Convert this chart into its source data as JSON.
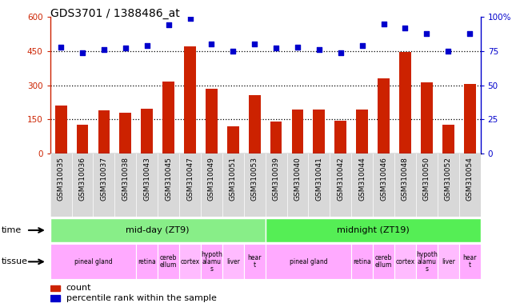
{
  "title": "GDS3701 / 1388486_at",
  "samples": [
    "GSM310035",
    "GSM310036",
    "GSM310037",
    "GSM310038",
    "GSM310043",
    "GSM310045",
    "GSM310047",
    "GSM310049",
    "GSM310051",
    "GSM310053",
    "GSM310039",
    "GSM310040",
    "GSM310041",
    "GSM310042",
    "GSM310044",
    "GSM310046",
    "GSM310048",
    "GSM310050",
    "GSM310052",
    "GSM310054"
  ],
  "counts": [
    210,
    128,
    188,
    180,
    198,
    315,
    470,
    285,
    118,
    255,
    140,
    192,
    193,
    145,
    192,
    330,
    445,
    313,
    128,
    305
  ],
  "percentiles": [
    78,
    74,
    76,
    77,
    79,
    94,
    99,
    80,
    75,
    80,
    77,
    78,
    76,
    74,
    79,
    95,
    92,
    88,
    75,
    88
  ],
  "left_ylim": [
    0,
    600
  ],
  "right_ylim": [
    0,
    100
  ],
  "left_yticks": [
    0,
    150,
    300,
    450,
    600
  ],
  "right_yticks": [
    0,
    25,
    50,
    75,
    100
  ],
  "bar_color": "#cc2200",
  "dot_color": "#0000cc",
  "time_groups": [
    {
      "label": "mid-day (ZT9)",
      "start": 0,
      "end": 10,
      "color": "#88ee88"
    },
    {
      "label": "midnight (ZT19)",
      "start": 10,
      "end": 20,
      "color": "#55ee55"
    }
  ],
  "tissue_groups": [
    {
      "label": "pineal gland",
      "start": 0,
      "end": 4,
      "color": "#ffaaff"
    },
    {
      "label": "retina",
      "start": 4,
      "end": 5,
      "color": "#ffaaff"
    },
    {
      "label": "cereb\nellum",
      "start": 5,
      "end": 6,
      "color": "#ffaaff"
    },
    {
      "label": "cortex",
      "start": 6,
      "end": 7,
      "color": "#ffbbff"
    },
    {
      "label": "hypoth\nalamu\ns",
      "start": 7,
      "end": 8,
      "color": "#ffaaff"
    },
    {
      "label": "liver",
      "start": 8,
      "end": 9,
      "color": "#ffbbff"
    },
    {
      "label": "hear\nt",
      "start": 9,
      "end": 10,
      "color": "#ffaaff"
    },
    {
      "label": "pineal gland",
      "start": 10,
      "end": 14,
      "color": "#ffaaff"
    },
    {
      "label": "retina",
      "start": 14,
      "end": 15,
      "color": "#ffaaff"
    },
    {
      "label": "cereb\nellum",
      "start": 15,
      "end": 16,
      "color": "#ffaaff"
    },
    {
      "label": "cortex",
      "start": 16,
      "end": 17,
      "color": "#ffbbff"
    },
    {
      "label": "hypoth\nalamu\ns",
      "start": 17,
      "end": 18,
      "color": "#ffaaff"
    },
    {
      "label": "liver",
      "start": 18,
      "end": 19,
      "color": "#ffbbff"
    },
    {
      "label": "hear\nt",
      "start": 19,
      "end": 20,
      "color": "#ffaaff"
    }
  ],
  "xlabel_fontsize": 6.5,
  "title_fontsize": 10,
  "tick_fontsize": 7.5,
  "row_label_fontsize": 8,
  "tissue_fontsize": 5.5
}
